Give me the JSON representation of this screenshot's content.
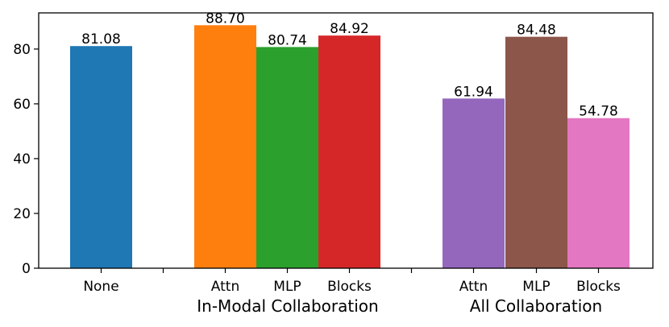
{
  "chart_data": {
    "type": "bar",
    "ylim": [
      0,
      93.2
    ],
    "yticks": [
      0,
      20,
      40,
      60,
      80
    ],
    "bars": [
      {
        "label": "None",
        "value": 81.08,
        "display": "81.08",
        "color": "#1f77b4"
      },
      {
        "label": "Attn",
        "value": 88.7,
        "display": "88.70",
        "color": "#ff7f0e"
      },
      {
        "label": "MLP",
        "value": 80.74,
        "display": "80.74",
        "color": "#2ca02c"
      },
      {
        "label": "Blocks",
        "value": 84.92,
        "display": "84.92",
        "color": "#d62728"
      },
      {
        "label": "Attn",
        "value": 61.94,
        "display": "61.94",
        "color": "#9467bd"
      },
      {
        "label": "MLP",
        "value": 84.48,
        "display": "84.48",
        "color": "#8c564b"
      },
      {
        "label": "Blocks",
        "value": 54.78,
        "display": "54.78",
        "color": "#e377c2"
      }
    ],
    "groups": [
      {
        "label": "In-Modal Collaboration"
      },
      {
        "label": "All Collaboration"
      }
    ]
  }
}
